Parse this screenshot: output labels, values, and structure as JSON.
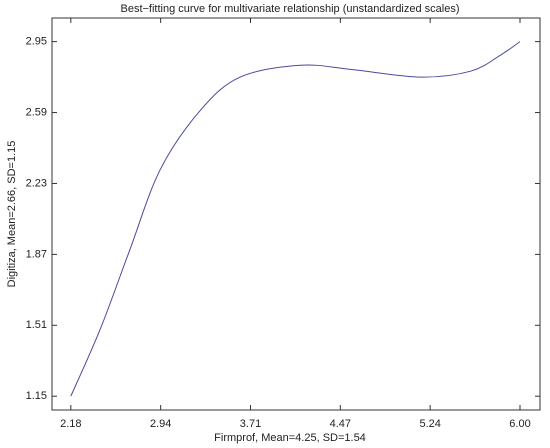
{
  "chart_data": {
    "type": "line",
    "title": "Best−fitting curve for multivariate relationship (unstandardized scales)",
    "xlabel": "Firmprof, Mean=4.25, SD=1.54",
    "ylabel": "Digitiza, Mean=2.66, SD=1.15",
    "x": [
      2.18,
      2.43,
      2.68,
      2.94,
      3.28,
      3.62,
      4.13,
      4.55,
      5.15,
      5.58,
      5.83,
      6.0
    ],
    "series": [
      {
        "name": "Digitiza",
        "color": "#4a4a9a",
        "values": [
          1.15,
          1.49,
          1.89,
          2.3,
          2.6,
          2.77,
          2.83,
          2.81,
          2.77,
          2.8,
          2.88,
          2.95
        ]
      }
    ],
    "xlim": [
      2.02,
      6.17
    ],
    "ylim": [
      1.08,
      3.07
    ],
    "xticks": [
      {
        "value": 2.18,
        "label": "2.18"
      },
      {
        "value": 2.944,
        "label": "2.94"
      },
      {
        "value": 3.708,
        "label": "3.71"
      },
      {
        "value": 4.472,
        "label": "4.47"
      },
      {
        "value": 5.236,
        "label": "5.24"
      },
      {
        "value": 6.0,
        "label": "6.00"
      }
    ],
    "yticks": [
      {
        "value": 1.15,
        "label": "1.15"
      },
      {
        "value": 1.51,
        "label": "1.51"
      },
      {
        "value": 1.87,
        "label": "1.87"
      },
      {
        "value": 2.23,
        "label": "2.23"
      },
      {
        "value": 2.59,
        "label": "2.59"
      },
      {
        "value": 2.95,
        "label": "2.95"
      }
    ]
  }
}
